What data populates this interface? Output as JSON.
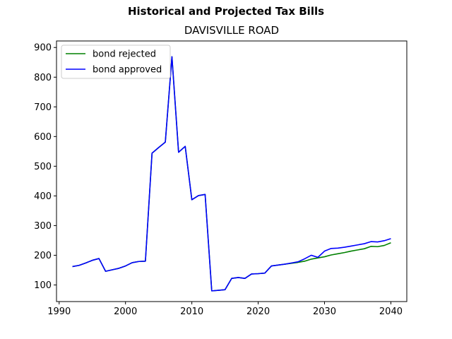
{
  "chart_data": {
    "type": "line",
    "suptitle": "Historical and Projected Tax Bills",
    "title": "DAVISVILLE ROAD",
    "xlabel": "",
    "ylabel": "",
    "xlim": [
      1989.6,
      2042.4
    ],
    "ylim": [
      44,
      922
    ],
    "xticks": [
      1990,
      2000,
      2010,
      2020,
      2030,
      2040
    ],
    "yticks": [
      100,
      200,
      300,
      400,
      500,
      600,
      700,
      800,
      900
    ],
    "grid": false,
    "legend_position": "upper-left",
    "series": [
      {
        "name": "bond rejected",
        "color": "#008000",
        "x": [
          1992,
          1993,
          1994,
          1995,
          1996,
          1997,
          1998,
          1999,
          2000,
          2001,
          2002,
          2003,
          2004,
          2005,
          2006,
          2007,
          2008,
          2009,
          2010,
          2011,
          2012,
          2013,
          2014,
          2015,
          2016,
          2017,
          2018,
          2019,
          2020,
          2021,
          2022,
          2023,
          2024,
          2025,
          2026,
          2027,
          2028,
          2029,
          2030,
          2031,
          2032,
          2033,
          2034,
          2035,
          2036,
          2037,
          2038,
          2039,
          2040
        ],
        "y": [
          162,
          166,
          174,
          183,
          189,
          146,
          151,
          156,
          164,
          175,
          179,
          180,
          544,
          563,
          581,
          869,
          547,
          567,
          387,
          401,
          405,
          80,
          82,
          84,
          122,
          125,
          122,
          137,
          138,
          140,
          164,
          167,
          170,
          173,
          176,
          180,
          187,
          191,
          195,
          201,
          205,
          209,
          214,
          218,
          222,
          230,
          229,
          233,
          242
        ]
      },
      {
        "name": "bond approved",
        "color": "#0000ff",
        "x": [
          1992,
          1993,
          1994,
          1995,
          1996,
          1997,
          1998,
          1999,
          2000,
          2001,
          2002,
          2003,
          2004,
          2005,
          2006,
          2007,
          2008,
          2009,
          2010,
          2011,
          2012,
          2013,
          2014,
          2015,
          2016,
          2017,
          2018,
          2019,
          2020,
          2021,
          2022,
          2023,
          2024,
          2025,
          2026,
          2027,
          2028,
          2029,
          2030,
          2031,
          2032,
          2033,
          2034,
          2035,
          2036,
          2037,
          2038,
          2039,
          2040
        ],
        "y": [
          162,
          166,
          174,
          183,
          189,
          146,
          151,
          156,
          164,
          175,
          179,
          180,
          544,
          563,
          581,
          869,
          547,
          567,
          387,
          401,
          405,
          80,
          82,
          84,
          122,
          125,
          122,
          137,
          138,
          140,
          164,
          167,
          170,
          174,
          178,
          188,
          200,
          193,
          214,
          223,
          224,
          227,
          231,
          235,
          239,
          246,
          245,
          249,
          256
        ]
      }
    ]
  }
}
